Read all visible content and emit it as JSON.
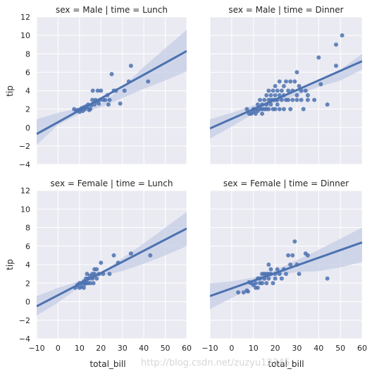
{
  "chart_data": {
    "type": "scatter",
    "xlim": [
      -10,
      60
    ],
    "ylim": [
      -4,
      12
    ],
    "xticks": [
      -10,
      0,
      10,
      20,
      30,
      40,
      50,
      60
    ],
    "yticks": [
      -4,
      -2,
      0,
      2,
      4,
      6,
      8,
      10,
      12
    ],
    "xlabel": "total_bill",
    "ylabel": "tip",
    "grid": true,
    "point_color": "#4c72b0",
    "band_color": "#c5cde6",
    "background_color": "#eaeaf2",
    "panels": [
      {
        "title": "sex = Male | time = Lunch",
        "fit": {
          "x": [
            -10,
            60
          ],
          "y": [
            -0.7,
            8.3
          ]
        },
        "band_upper": [
          [
            -10,
            0.9
          ],
          [
            0,
            1.6
          ],
          [
            10,
            2.1
          ],
          [
            20,
            2.6
          ],
          [
            30,
            4.3
          ],
          [
            40,
            6.6
          ],
          [
            50,
            8.6
          ],
          [
            60,
            10.6
          ]
        ],
        "band_lower": [
          [
            -10,
            -1.9
          ],
          [
            0,
            0.3
          ],
          [
            10,
            1.5
          ],
          [
            20,
            2.2
          ],
          [
            30,
            3.2
          ],
          [
            40,
            4.2
          ],
          [
            50,
            5.1
          ],
          [
            60,
            6.1
          ]
        ],
        "points": [
          [
            7.5,
            2.0
          ],
          [
            8.5,
            1.8
          ],
          [
            9.2,
            1.9
          ],
          [
            10,
            1.7
          ],
          [
            10.5,
            2.0
          ],
          [
            11,
            2.1
          ],
          [
            11.5,
            1.8
          ],
          [
            12,
            2.2
          ],
          [
            12.5,
            2.0
          ],
          [
            13,
            2.3
          ],
          [
            13.5,
            2.2
          ],
          [
            14,
            2.5
          ],
          [
            14.5,
            1.9
          ],
          [
            15,
            2.0
          ],
          [
            15.5,
            2.4
          ],
          [
            16,
            3.0
          ],
          [
            16.2,
            4.0
          ],
          [
            17,
            2.5
          ],
          [
            17.5,
            3.0
          ],
          [
            18,
            2.8
          ],
          [
            18.5,
            4.0
          ],
          [
            19,
            2.6
          ],
          [
            19.5,
            3.0
          ],
          [
            20,
            4.0
          ],
          [
            21,
            3.0
          ],
          [
            22,
            3.0
          ],
          [
            23,
            3.5
          ],
          [
            23.5,
            2.5
          ],
          [
            24,
            3.0
          ],
          [
            25,
            5.8
          ],
          [
            26,
            4.0
          ],
          [
            27,
            4.0
          ],
          [
            29,
            2.6
          ],
          [
            31,
            4.0
          ],
          [
            33,
            5.0
          ],
          [
            34,
            6.7
          ],
          [
            42,
            5.0
          ]
        ]
      },
      {
        "title": "sex = Male | time = Dinner",
        "fit": {
          "x": [
            -10,
            60
          ],
          "y": [
            -0.1,
            7.2
          ]
        },
        "band_upper": [
          [
            -10,
            0.9
          ],
          [
            0,
            1.6
          ],
          [
            10,
            2.4
          ],
          [
            20,
            3.1
          ],
          [
            30,
            4.0
          ],
          [
            40,
            5.0
          ],
          [
            50,
            6.3
          ],
          [
            60,
            8.0
          ]
        ],
        "band_lower": [
          [
            -10,
            -1.2
          ],
          [
            0,
            0.1
          ],
          [
            10,
            1.5
          ],
          [
            20,
            2.7
          ],
          [
            30,
            3.5
          ],
          [
            40,
            4.4
          ],
          [
            50,
            5.1
          ],
          [
            60,
            6.3
          ]
        ],
        "points": [
          [
            7,
            2.0
          ],
          [
            8,
            1.5
          ],
          [
            9,
            1.5
          ],
          [
            10,
            1.7
          ],
          [
            10,
            2.0
          ],
          [
            11,
            1.5
          ],
          [
            11,
            2.0
          ],
          [
            12,
            1.8
          ],
          [
            12,
            2.5
          ],
          [
            13,
            2.0
          ],
          [
            13,
            3.0
          ],
          [
            14,
            1.5
          ],
          [
            14,
            2.0
          ],
          [
            14,
            2.5
          ],
          [
            15,
            2.0
          ],
          [
            15,
            3.0
          ],
          [
            16,
            2.0
          ],
          [
            16,
            2.5
          ],
          [
            16,
            3.5
          ],
          [
            17,
            2.0
          ],
          [
            17,
            3.0
          ],
          [
            17,
            4.0
          ],
          [
            18,
            2.5
          ],
          [
            18,
            3.0
          ],
          [
            18,
            3.5
          ],
          [
            19,
            2.0
          ],
          [
            19,
            3.0
          ],
          [
            19,
            4.0
          ],
          [
            20,
            2.0
          ],
          [
            20,
            3.0
          ],
          [
            20,
            3.5
          ],
          [
            20,
            4.5
          ],
          [
            21,
            2.5
          ],
          [
            21,
            3.0
          ],
          [
            21,
            4.0
          ],
          [
            22,
            2.0
          ],
          [
            22,
            3.5
          ],
          [
            22,
            5.0
          ],
          [
            23,
            3.0
          ],
          [
            23,
            4.0
          ],
          [
            24,
            2.0
          ],
          [
            24,
            3.5
          ],
          [
            24,
            4.5
          ],
          [
            25,
            3.0
          ],
          [
            25,
            5.0
          ],
          [
            26,
            3.0
          ],
          [
            26,
            4.0
          ],
          [
            27,
            2.0
          ],
          [
            27,
            5.0
          ],
          [
            28,
            3.0
          ],
          [
            28,
            4.0
          ],
          [
            29,
            5.0
          ],
          [
            30,
            3.0
          ],
          [
            30,
            3.5
          ],
          [
            30,
            6.0
          ],
          [
            31,
            4.5
          ],
          [
            32,
            4.0
          ],
          [
            32,
            3.0
          ],
          [
            33,
            2.0
          ],
          [
            34,
            4.0
          ],
          [
            35,
            3.5
          ],
          [
            35,
            3.0
          ],
          [
            38,
            3.0
          ],
          [
            40,
            7.6
          ],
          [
            41,
            4.7
          ],
          [
            44,
            2.5
          ],
          [
            48,
            9.0
          ],
          [
            48,
            6.7
          ],
          [
            50.8,
            10.0
          ]
        ]
      },
      {
        "title": "sex = Female | time = Lunch",
        "fit": {
          "x": [
            -10,
            60
          ],
          "y": [
            -0.5,
            7.9
          ]
        },
        "band_upper": [
          [
            -10,
            0.6
          ],
          [
            0,
            1.5
          ],
          [
            10,
            2.2
          ],
          [
            20,
            3.1
          ],
          [
            30,
            4.7
          ],
          [
            40,
            6.3
          ],
          [
            50,
            8.0
          ],
          [
            60,
            9.7
          ]
        ],
        "band_lower": [
          [
            -10,
            -1.5
          ],
          [
            0,
            -0.1
          ],
          [
            10,
            1.6
          ],
          [
            20,
            2.8
          ],
          [
            30,
            3.3
          ],
          [
            40,
            4.1
          ],
          [
            50,
            5.0
          ],
          [
            60,
            6.0
          ]
        ],
        "points": [
          [
            8,
            1.5
          ],
          [
            9,
            1.8
          ],
          [
            10,
            1.5
          ],
          [
            10,
            2.0
          ],
          [
            11,
            2.0
          ],
          [
            11,
            1.6
          ],
          [
            12,
            1.5
          ],
          [
            12,
            2.2
          ],
          [
            12.5,
            1.9
          ],
          [
            13,
            2.5
          ],
          [
            13,
            2.0
          ],
          [
            13.5,
            3.0
          ],
          [
            14,
            2.5
          ],
          [
            14,
            2.0
          ],
          [
            15,
            2.0
          ],
          [
            15,
            2.8
          ],
          [
            16,
            3.0
          ],
          [
            16,
            2.5
          ],
          [
            16.5,
            2.0
          ],
          [
            17,
            3.5
          ],
          [
            17,
            3.0
          ],
          [
            18,
            2.5
          ],
          [
            18,
            3.5
          ],
          [
            19,
            3.0
          ],
          [
            20,
            4.2
          ],
          [
            21,
            3.0
          ],
          [
            24,
            3.0
          ],
          [
            26,
            5.0
          ],
          [
            28,
            4.2
          ],
          [
            34,
            5.2
          ],
          [
            43,
            5.0
          ]
        ]
      },
      {
        "title": "sex = Female | time = Dinner",
        "fit": {
          "x": [
            -10,
            60
          ],
          "y": [
            0.6,
            6.4
          ]
        },
        "band_upper": [
          [
            -10,
            2.0
          ],
          [
            0,
            2.2
          ],
          [
            10,
            2.6
          ],
          [
            20,
            3.4
          ],
          [
            30,
            4.5
          ],
          [
            40,
            5.6
          ],
          [
            50,
            6.8
          ],
          [
            60,
            8.0
          ]
        ],
        "band_lower": [
          [
            -10,
            -0.8
          ],
          [
            0,
            0.4
          ],
          [
            10,
            1.6
          ],
          [
            20,
            2.8
          ],
          [
            30,
            3.2
          ],
          [
            40,
            3.3
          ],
          [
            50,
            3.7
          ],
          [
            60,
            4.3
          ]
        ],
        "points": [
          [
            3,
            1.0
          ],
          [
            5.5,
            1.0
          ],
          [
            7,
            1.2
          ],
          [
            7.5,
            1.1
          ],
          [
            8,
            2.1
          ],
          [
            9,
            2.0
          ],
          [
            10,
            1.8
          ],
          [
            11,
            2.0
          ],
          [
            11,
            1.5
          ],
          [
            12,
            1.5
          ],
          [
            12,
            2.5
          ],
          [
            13,
            2.0
          ],
          [
            13,
            2.5
          ],
          [
            14,
            2.0
          ],
          [
            14,
            3.0
          ],
          [
            15,
            2.5
          ],
          [
            15,
            3.0
          ],
          [
            16,
            3.0
          ],
          [
            16,
            2.0
          ],
          [
            17,
            2.5
          ],
          [
            17,
            3.0
          ],
          [
            17,
            4.0
          ],
          [
            18,
            3.0
          ],
          [
            18,
            3.5
          ],
          [
            19,
            2.0
          ],
          [
            20,
            2.5
          ],
          [
            20,
            3.0
          ],
          [
            21,
            3.5
          ],
          [
            22,
            3.0
          ],
          [
            23,
            2.5
          ],
          [
            24,
            3.5
          ],
          [
            25,
            3.0
          ],
          [
            26,
            5.0
          ],
          [
            27,
            4.0
          ],
          [
            28,
            5.0
          ],
          [
            29,
            6.5
          ],
          [
            30,
            4.0
          ],
          [
            31,
            3.0
          ],
          [
            34,
            5.2
          ],
          [
            35,
            5.0
          ],
          [
            44,
            2.5
          ]
        ]
      }
    ]
  },
  "watermark": "http://blog.csdn.net/zuzyu12345"
}
